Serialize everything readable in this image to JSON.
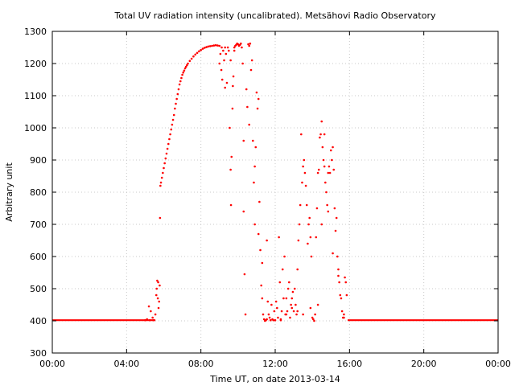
{
  "chart_data": {
    "type": "scatter",
    "title": "Total UV radiation intensity (uncalibrated). Metsähovi Radio Observatory",
    "xlabel": "Time UT, on date 2013-03-14",
    "ylabel": "Arbitrary unit",
    "x_unit": "hours",
    "xlim": [
      0,
      24
    ],
    "ylim": [
      300,
      1300
    ],
    "x_ticks": [
      {
        "value": 0,
        "label": "00:00"
      },
      {
        "value": 4,
        "label": "04:00"
      },
      {
        "value": 8,
        "label": "08:00"
      },
      {
        "value": 12,
        "label": "12:00"
      },
      {
        "value": 16,
        "label": "16:00"
      },
      {
        "value": 20,
        "label": "20:00"
      },
      {
        "value": 24,
        "label": "00:00"
      }
    ],
    "y_ticks": [
      {
        "value": 300,
        "label": "300"
      },
      {
        "value": 400,
        "label": "400"
      },
      {
        "value": 500,
        "label": "500"
      },
      {
        "value": 600,
        "label": "600"
      },
      {
        "value": 700,
        "label": "700"
      },
      {
        "value": 800,
        "label": "800"
      },
      {
        "value": 900,
        "label": "900"
      },
      {
        "value": 1000,
        "label": "1000"
      },
      {
        "value": 1100,
        "label": "1100"
      },
      {
        "value": 1200,
        "label": "1200"
      },
      {
        "value": 1300,
        "label": "1300"
      }
    ],
    "grid": true,
    "legend": "none",
    "color": "#ff0000",
    "baseline_segments": [
      {
        "x_start": 0,
        "x_end": 5.55,
        "y": 402
      },
      {
        "x_start": 15.9,
        "x_end": 24,
        "y": 402
      }
    ],
    "series": [
      {
        "x": [
          5.0,
          5.1,
          5.2,
          5.25,
          5.3,
          5.4,
          5.45,
          5.55,
          5.6,
          5.62,
          5.65,
          5.68,
          5.7,
          5.72,
          5.75,
          5.78,
          5.8,
          5.82,
          5.85,
          5.9,
          5.95,
          6.0,
          6.05,
          6.1,
          6.15,
          6.2,
          6.25,
          6.3,
          6.35,
          6.4,
          6.45,
          6.5,
          6.55,
          6.6,
          6.65,
          6.7,
          6.75,
          6.8,
          6.85,
          6.9,
          6.95,
          7.0,
          7.05,
          7.1,
          7.15,
          7.2,
          7.25,
          7.3,
          7.4,
          7.5,
          7.6,
          7.7,
          7.8,
          7.9,
          8.0,
          8.1,
          8.2,
          8.3,
          8.4,
          8.5,
          8.6,
          8.7,
          8.8,
          8.9,
          9.0,
          9.0,
          9.05,
          9.1,
          9.12,
          9.15,
          9.2,
          9.25,
          9.3,
          9.35,
          9.4,
          9.45,
          9.5,
          9.55,
          9.6,
          9.62,
          9.65,
          9.7,
          9.72,
          9.75,
          9.8,
          9.85,
          9.9,
          9.95,
          10.0,
          10.05,
          10.1,
          10.15,
          10.2,
          10.25,
          10.3,
          10.35,
          10.4,
          10.45,
          10.5,
          10.55,
          10.6,
          10.65,
          10.7,
          10.75,
          10.8,
          10.85,
          10.9,
          10.95,
          11.0,
          11.05,
          11.1,
          11.15,
          11.2,
          11.25,
          11.3,
          11.35,
          11.4,
          11.45,
          11.5,
          11.55,
          11.6,
          11.65,
          11.7,
          11.75,
          11.8,
          11.85,
          11.9,
          11.95,
          12.0,
          12.05,
          12.1,
          12.15,
          12.2,
          12.25,
          12.3,
          12.35,
          12.4,
          12.45,
          12.5,
          12.55,
          12.6,
          12.65,
          12.7,
          12.75,
          12.8,
          12.85,
          12.9,
          12.95,
          13.0,
          13.05,
          13.1,
          13.15,
          13.2,
          13.25,
          13.3,
          13.35,
          13.4,
          13.45,
          13.5,
          13.55,
          13.6,
          13.65,
          13.7,
          13.75,
          13.8,
          13.85,
          13.9,
          13.95,
          14.0,
          14.05,
          14.1,
          14.15,
          14.2,
          14.25,
          14.3,
          14.35,
          14.4,
          14.45,
          14.5,
          14.55,
          14.6,
          14.65,
          14.7,
          14.75,
          14.8,
          14.85,
          14.9,
          14.95,
          15.0,
          15.05,
          15.1,
          15.15,
          15.2,
          15.25,
          15.3,
          15.35,
          15.4,
          15.45,
          15.5,
          15.55,
          15.6,
          15.65,
          15.7,
          15.75,
          15.8,
          15.85,
          9.3,
          9.6,
          9.8,
          10.3,
          10.6,
          10.9,
          11.1,
          11.3,
          11.55,
          12.3,
          12.6,
          12.9,
          13.2,
          13.5,
          13.9,
          14.3,
          14.5,
          14.65,
          14.85,
          15.1,
          15.4,
          15.7
        ],
        "y": [
          402,
          405,
          445,
          402,
          430,
          410,
          402,
          420,
          480,
          500,
          525,
          470,
          520,
          440,
          460,
          510,
          720,
          820,
          830,
          845,
          860,
          875,
          890,
          905,
          920,
          935,
          950,
          965,
          980,
          995,
          1010,
          1025,
          1040,
          1060,
          1075,
          1090,
          1105,
          1120,
          1135,
          1145,
          1155,
          1165,
          1172,
          1178,
          1185,
          1190,
          1195,
          1200,
          1208,
          1215,
          1222,
          1228,
          1233,
          1238,
          1242,
          1246,
          1249,
          1251,
          1253,
          1254,
          1255,
          1256,
          1257,
          1256,
          1255,
          1200,
          1230,
          1180,
          1250,
          1150,
          1240,
          1210,
          1250,
          1230,
          1140,
          1250,
          1240,
          1000,
          870,
          760,
          910,
          1060,
          1130,
          1160,
          1250,
          1255,
          1258,
          1262,
          1260,
          1255,
          1258,
          1262,
          1250,
          1200,
          740,
          545,
          420,
          1120,
          1065,
          1260,
          1255,
          1262,
          1180,
          1210,
          960,
          830,
          700,
          940,
          1110,
          1060,
          1090,
          770,
          620,
          510,
          470,
          420,
          405,
          400,
          402,
          405,
          460,
          420,
          410,
          402,
          450,
          405,
          402,
          430,
          402,
          460,
          440,
          410,
          660,
          520,
          402,
          430,
          560,
          470,
          600,
          420,
          470,
          430,
          500,
          520,
          410,
          450,
          440,
          490,
          430,
          500,
          450,
          420,
          560,
          650,
          700,
          760,
          980,
          830,
          880,
          900,
          860,
          820,
          760,
          640,
          700,
          720,
          660,
          600,
          410,
          405,
          400,
          420,
          660,
          750,
          860,
          870,
          970,
          980,
          1020,
          940,
          900,
          880,
          830,
          800,
          760,
          740,
          880,
          860,
          930,
          900,
          940,
          870,
          750,
          680,
          720,
          600,
          560,
          520,
          480,
          470,
          430,
          410,
          420,
          535,
          520,
          480,
          1125,
          1210,
          1240,
          960,
          1010,
          880,
          670,
          580,
          650,
          405,
          420,
          470,
          430,
          420,
          440,
          450,
          700,
          980,
          860,
          610,
          540,
          410
        ]
      }
    ]
  }
}
